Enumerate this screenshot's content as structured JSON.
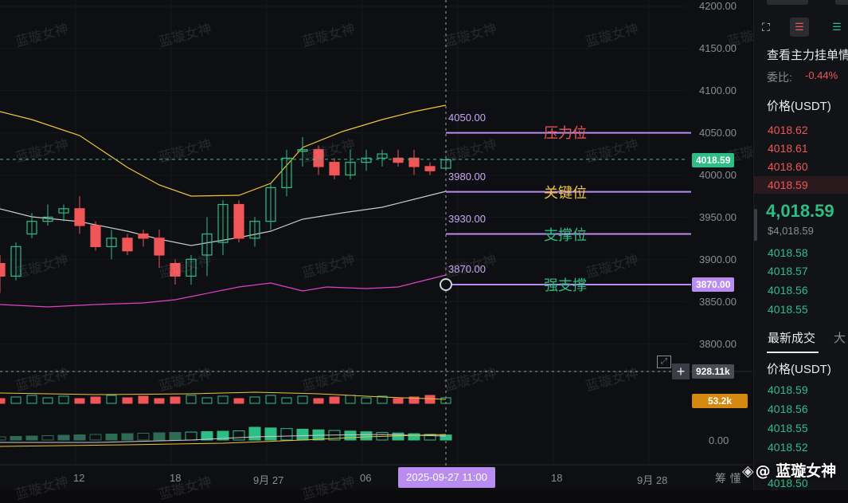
{
  "watermark_text": "蓝璇女神",
  "price_axis": [
    "4200.00",
    "4150.00",
    "4100.00",
    "4050.00",
    "4000.00",
    "3950.00",
    "3900.00",
    "3850.00",
    "3800.00"
  ],
  "volume_axis": "0.00",
  "current_price_tag": "4018.59",
  "strong_support_tag": "3870.00",
  "volume_tag": "928.11k",
  "ma_volume_tag": "53.2k",
  "levels": [
    {
      "value": "4050.00",
      "name": "压力位",
      "color": "#f05558",
      "price": 4050
    },
    {
      "value": "3980.00",
      "name": "关键位",
      "color": "#f0c33c",
      "price": 3980
    },
    {
      "value": "3930.00",
      "name": "支撑位",
      "color": "#2ebd85",
      "price": 3930
    },
    {
      "value": "3870.00",
      "name": "强支撑",
      "color": "#2ebd85",
      "price": 3870
    }
  ],
  "x_labels": [
    "12",
    "18",
    "9月 27",
    "06",
    "18",
    "9月 28"
  ],
  "crosshair_time": "2025-09-27 11:00",
  "crosshair_price": "3870.00",
  "footer_brand": "@ 蓝璇女神",
  "footer_partial": "筹 懂",
  "orderbook": {
    "title": "查看主力挂单情",
    "ratio_label": "委比:",
    "ratio_value": "-0.44%",
    "price_header": "价格(USDT)",
    "asks": [
      "4018.62",
      "4018.61",
      "4018.60",
      "4018.59"
    ],
    "last_price": "4,018.59",
    "last_price_usd": "$4,018.59",
    "bids": [
      "4018.58",
      "4018.57",
      "4018.56",
      "4018.55"
    ],
    "trades_tab": "最新成交",
    "trades_tab2": "大",
    "trades_header": "价格(USDT)",
    "trades": [
      "4018.59",
      "4018.56",
      "4018.55",
      "4018.52",
      "4018.50"
    ]
  },
  "colors": {
    "up": "#2ebd85",
    "down": "#f05558",
    "purple": "#b98cf0",
    "yellow": "#f0c33c",
    "pink": "#e040c8"
  }
}
